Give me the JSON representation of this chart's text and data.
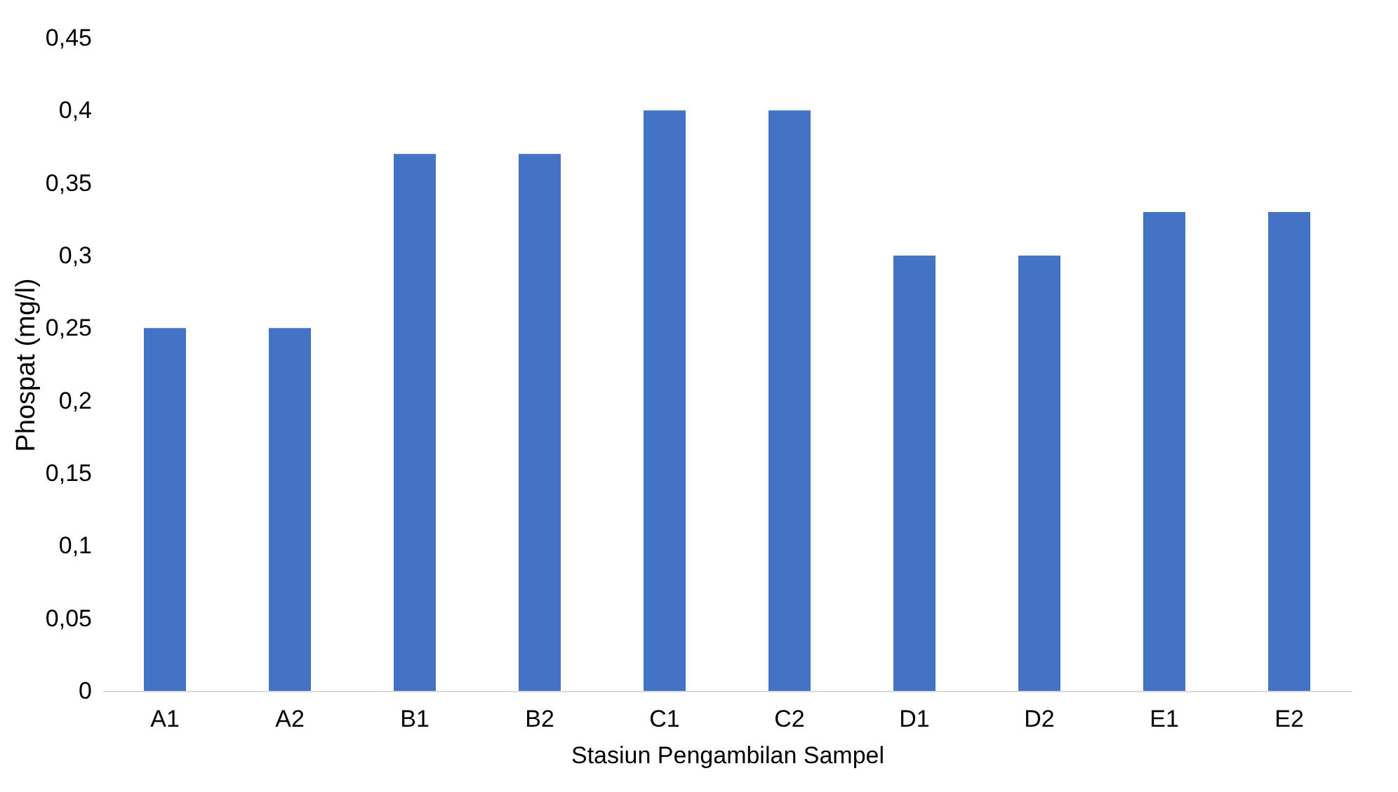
{
  "chart_data": {
    "type": "bar",
    "xlabel": "Stasiun Pengambilan Sampel",
    "ylabel": "Phospat (mg/l)",
    "categories": [
      "A1",
      "A2",
      "B1",
      "B2",
      "C1",
      "C2",
      "D1",
      "D2",
      "E1",
      "E2"
    ],
    "values": [
      0.25,
      0.25,
      0.37,
      0.37,
      0.4,
      0.4,
      0.3,
      0.3,
      0.33,
      0.33
    ],
    "color": "#4472c4",
    "ylim": [
      0,
      0.45
    ],
    "yticks": [
      0,
      {
        "value": 0.05,
        "label": "0,05"
      },
      {
        "value": 0.1,
        "label": "0,1"
      },
      {
        "value": 0.15,
        "label": "0,15"
      },
      {
        "value": 0.2,
        "label": "0,2"
      },
      {
        "value": 0.25,
        "label": "0,25"
      },
      {
        "value": 0.3,
        "label": "0,3"
      },
      {
        "value": 0.35,
        "label": "0,35"
      },
      {
        "value": 0.4,
        "label": "0,4"
      },
      {
        "value": 0.45,
        "label": "0,45"
      }
    ],
    "grid": false
  }
}
